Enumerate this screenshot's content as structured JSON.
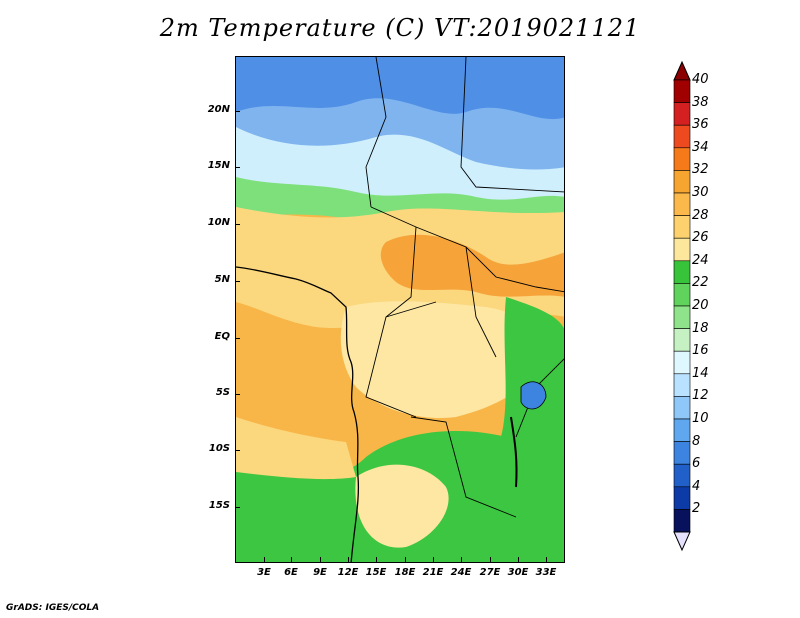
{
  "title": "2m Temperature (C) VT:2019021121",
  "credit": "GrADS: IGES/COLA",
  "lat_labels": [
    "20N",
    "15N",
    "10N",
    "5N",
    "EQ",
    "5S",
    "10S",
    "15S"
  ],
  "lon_labels": [
    "3E",
    "6E",
    "9E",
    "12E",
    "15E",
    "18E",
    "21E",
    "24E",
    "27E",
    "30E",
    "33E"
  ],
  "colorbar": {
    "levels": [
      "40",
      "38",
      "36",
      "34",
      "32",
      "30",
      "28",
      "26",
      "24",
      "22",
      "20",
      "18",
      "16",
      "14",
      "12",
      "10",
      "8",
      "6",
      "4",
      "2"
    ],
    "colors": [
      "#a10000",
      "#d42020",
      "#ed4a1f",
      "#f57a1a",
      "#f7a531",
      "#fbb94c",
      "#fcd16e",
      "#fde79d",
      "#37c43a",
      "#5fd35c",
      "#8fe38a",
      "#c6f2c3",
      "#dff7ff",
      "#b8e2ff",
      "#8fc8f8",
      "#5fa8f0",
      "#3c84e0",
      "#2060c8",
      "#0c3aa6",
      "#08115c"
    ],
    "over_color": "#8b0000",
    "under_color": "#e6e0ff"
  },
  "map": {
    "ocean_color": "#f8b648",
    "colors": {
      "sahara_cold": "#7fb4ef",
      "sahara_mid": "#a6cef7",
      "sahel_cool": "#cfeffc",
      "green_band": "#7ee07a",
      "warm": "#fbd77e",
      "hot": "#f6a43a",
      "very_hot": "#f08a2a",
      "deep_green": "#3cc641",
      "light_yellow": "#fde7a3"
    }
  }
}
